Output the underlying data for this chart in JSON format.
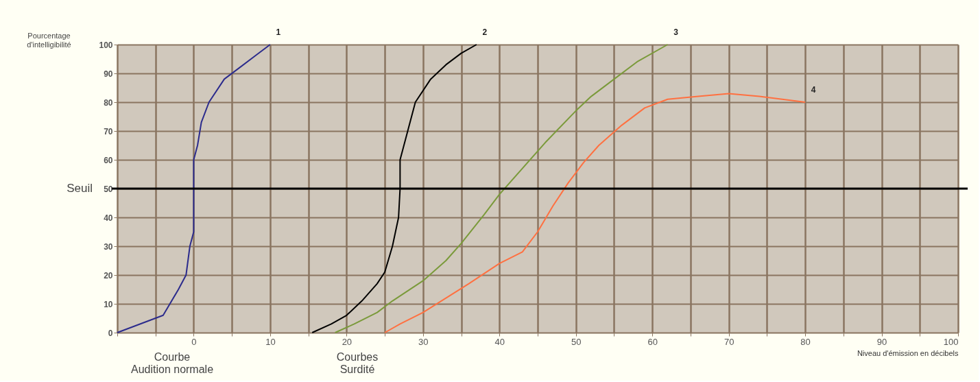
{
  "chart_data": {
    "type": "line",
    "xlabel": "Niveau d'émission en décibels",
    "ylabel": "Pourcentage d'intelligibilité",
    "xlim": [
      -10,
      100
    ],
    "ylim": [
      0,
      100
    ],
    "xticks": [
      {
        "value": -10,
        "label": null
      },
      {
        "value": -5,
        "label": null
      },
      0,
      {
        "value": 5,
        "label": null
      },
      10,
      {
        "value": 15,
        "label": null
      },
      20,
      {
        "value": 25,
        "label": null
      },
      30,
      {
        "value": 35,
        "label": null
      },
      40,
      {
        "value": 45,
        "label": null
      },
      50,
      {
        "value": 55,
        "label": null
      },
      60,
      {
        "value": 65,
        "label": null
      },
      70,
      {
        "value": 75,
        "label": null
      },
      80,
      {
        "value": 85,
        "label": null
      },
      90,
      {
        "value": 95,
        "label": null
      },
      100
    ],
    "yticks": [
      0,
      10,
      20,
      30,
      40,
      50,
      60,
      70,
      80,
      90,
      100
    ],
    "grid": true,
    "legend": false,
    "marker": "none",
    "line_style": "solid",
    "series": [
      {
        "name": "1",
        "color": "#2b2b8c",
        "x": [
          -10,
          -4,
          -2,
          -1,
          -0.5,
          0,
          0,
          0,
          0.5,
          1,
          2,
          4,
          6,
          8,
          10
        ],
        "values": [
          0,
          6,
          15,
          20,
          30,
          35,
          50,
          60,
          65,
          73,
          80,
          88,
          92,
          96,
          100
        ]
      },
      {
        "name": "2",
        "color": "#000000",
        "x": [
          15.5,
          18,
          20,
          22,
          24,
          25,
          26,
          26.8,
          27,
          27,
          28,
          29,
          31,
          33,
          35,
          37
        ],
        "values": [
          0,
          3,
          6,
          11,
          17,
          21,
          30,
          40,
          50,
          60,
          70,
          80,
          88,
          93,
          97,
          100
        ]
      },
      {
        "name": "3",
        "color": "#7a9a3a",
        "x": [
          18.5,
          21,
          24,
          26,
          30,
          33,
          35,
          38,
          40,
          43,
          46,
          50,
          52,
          55,
          58,
          62
        ],
        "values": [
          0,
          3,
          7,
          11,
          18,
          25,
          31,
          41,
          48,
          57,
          66,
          77,
          82,
          88,
          94,
          100
        ]
      },
      {
        "name": "4",
        "color": "#ff7040",
        "x": [
          25,
          27,
          30,
          33,
          36,
          40,
          43,
          45,
          47,
          49,
          51,
          53,
          56,
          59,
          62,
          66,
          70,
          74,
          77,
          80
        ],
        "values": [
          0,
          3,
          7,
          12,
          17,
          24,
          28,
          35,
          44,
          52,
          59,
          65,
          72,
          78,
          81,
          82,
          83,
          82,
          81,
          80
        ]
      }
    ],
    "ref_lines": [
      {
        "axis": "y",
        "value": 50,
        "label": "Seuil",
        "color": "#000000",
        "line_style": "solid"
      }
    ],
    "annotations": [
      "Courbe\nAudition normale",
      "Courbes\nSurdité"
    ]
  }
}
